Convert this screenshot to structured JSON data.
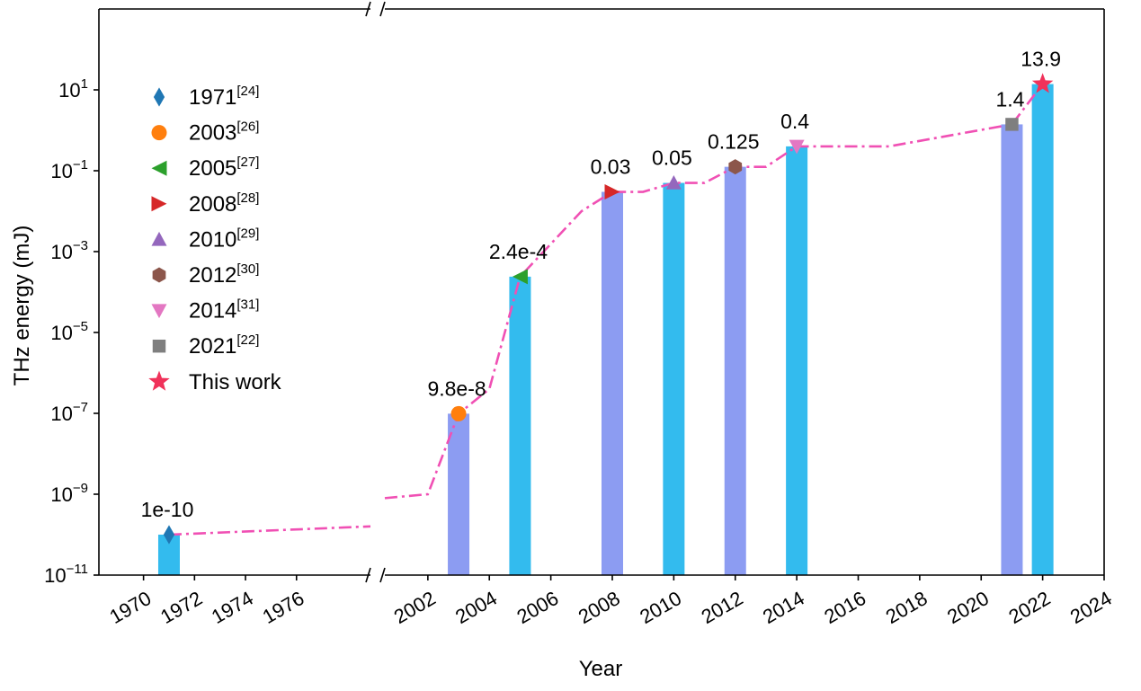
{
  "chart_data": {
    "type": "bar",
    "xlabel": "Year",
    "ylabel": "THz energy (mJ)",
    "y_scale": "log",
    "ylim": [
      1e-11,
      1000
    ],
    "y_ticks": [
      {
        "value": 1e-11,
        "base": "10",
        "exp": "−11"
      },
      {
        "value": 1e-09,
        "base": "10",
        "exp": "−9"
      },
      {
        "value": 1e-07,
        "base": "10",
        "exp": "−7"
      },
      {
        "value": 1e-05,
        "base": "10",
        "exp": "−5"
      },
      {
        "value": 0.001,
        "base": "10",
        "exp": "−3"
      },
      {
        "value": 0.1,
        "base": "10",
        "exp": "−1"
      },
      {
        "value": 10,
        "base": "10",
        "exp": "1"
      }
    ],
    "x_axis_break": true,
    "x_segments": [
      {
        "xlim": [
          1968.25,
          1978.9
        ],
        "ticks": [
          "1970",
          "1972",
          "1974",
          "1976"
        ]
      },
      {
        "xlim": [
          2000.6,
          2024.0
        ],
        "ticks": [
          "2002",
          "2004",
          "2006",
          "2008",
          "2010",
          "2012",
          "2014",
          "2016",
          "2018",
          "2020",
          "2022",
          "2024"
        ]
      }
    ],
    "bars": [
      {
        "year": 1971,
        "value": 1e-10,
        "color": "#33bbee"
      },
      {
        "year": 2003,
        "value": 9.8e-08,
        "color": "#8c9cf2"
      },
      {
        "year": 2005,
        "value": 0.00024,
        "color": "#33bbee"
      },
      {
        "year": 2008,
        "value": 0.03,
        "color": "#8c9cf2"
      },
      {
        "year": 2010,
        "value": 0.05,
        "color": "#33bbee"
      },
      {
        "year": 2012,
        "value": 0.125,
        "color": "#8c9cf2"
      },
      {
        "year": 2014,
        "value": 0.4,
        "color": "#33bbee"
      },
      {
        "year": 2021,
        "value": 1.4,
        "color": "#8c9cf2"
      },
      {
        "year": 2022,
        "value": 13.9,
        "color": "#33bbee"
      }
    ],
    "points": [
      {
        "year": 1971,
        "value": 1e-10,
        "label": "1e-10",
        "marker": "diamond",
        "color": "#1f77b4"
      },
      {
        "year": 2003,
        "value": 9.8e-08,
        "label": "9.8e-8",
        "marker": "circle",
        "color": "#ff7f0e"
      },
      {
        "year": 2005,
        "value": 0.00024,
        "label": "2.4e-4",
        "marker": "triangle-left",
        "color": "#2ca02c"
      },
      {
        "year": 2008,
        "value": 0.03,
        "label": "0.03",
        "marker": "triangle-right",
        "color": "#d62728"
      },
      {
        "year": 2010,
        "value": 0.05,
        "label": "0.05",
        "marker": "triangle-up",
        "color": "#9467bd"
      },
      {
        "year": 2012,
        "value": 0.125,
        "label": "0.125",
        "marker": "hexagon",
        "color": "#8c564b"
      },
      {
        "year": 2014,
        "value": 0.4,
        "label": "0.4",
        "marker": "triangle-down",
        "color": "#e377c2"
      },
      {
        "year": 2021,
        "value": 1.4,
        "label": "1.4",
        "marker": "square",
        "color": "#7f7f7f"
      },
      {
        "year": 2022,
        "value": 13.9,
        "label": "13.9",
        "marker": "star",
        "color": "#f0325a"
      }
    ],
    "trend_line": {
      "color": "#f050b4",
      "style": "dash-dot",
      "points": [
        [
          1971,
          1e-10
        ],
        [
          1978.9,
          1.6e-10
        ],
        [
          2000.6,
          8e-10
        ],
        [
          2002,
          1e-09
        ],
        [
          2003,
          9.8e-08
        ],
        [
          2004,
          4e-07
        ],
        [
          2005,
          0.00024
        ],
        [
          2007,
          0.01
        ],
        [
          2008,
          0.03
        ],
        [
          2009,
          0.03
        ],
        [
          2010,
          0.05
        ],
        [
          2011,
          0.05
        ],
        [
          2012,
          0.125
        ],
        [
          2013,
          0.125
        ],
        [
          2014,
          0.4
        ],
        [
          2017,
          0.4
        ],
        [
          2021,
          1.4
        ],
        [
          2022,
          13.9
        ]
      ]
    },
    "legend": {
      "placement": "upper-left",
      "entries": [
        {
          "year": "1971",
          "ref": "[24]",
          "marker": "diamond",
          "color": "#1f77b4"
        },
        {
          "year": "2003",
          "ref": "[26]",
          "marker": "circle",
          "color": "#ff7f0e"
        },
        {
          "year": "2005",
          "ref": "[27]",
          "marker": "triangle-left",
          "color": "#2ca02c"
        },
        {
          "year": "2008",
          "ref": "[28]",
          "marker": "triangle-right",
          "color": "#d62728"
        },
        {
          "year": "2010",
          "ref": "[29]",
          "marker": "triangle-up",
          "color": "#9467bd"
        },
        {
          "year": "2012",
          "ref": "[30]",
          "marker": "hexagon",
          "color": "#8c564b"
        },
        {
          "year": "2014",
          "ref": "[31]",
          "marker": "triangle-down",
          "color": "#e377c2"
        },
        {
          "year": "2021",
          "ref": "[22]",
          "marker": "square",
          "color": "#7f7f7f"
        },
        {
          "year": "This work",
          "ref": "",
          "marker": "star",
          "color": "#f0325a"
        }
      ]
    }
  }
}
